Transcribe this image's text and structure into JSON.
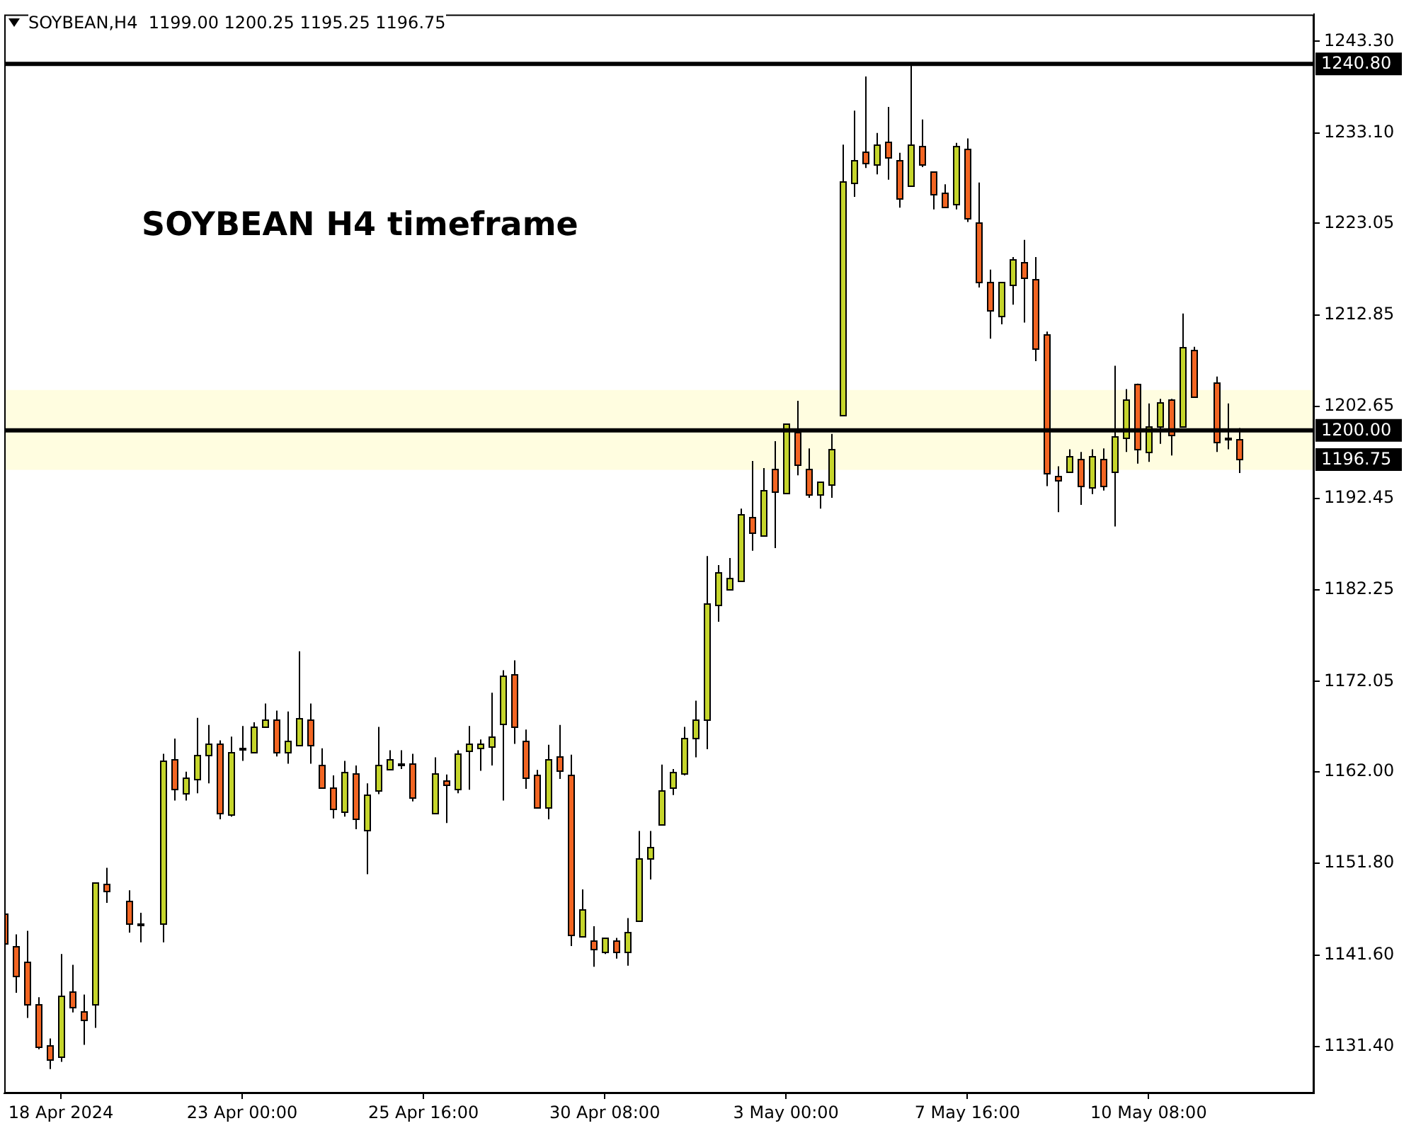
{
  "chart_data": {
    "type": "candlestick",
    "title": "SOYBEAN H4 timeframe",
    "subtitle": "SOYBEAN,H4  1199.00 1200.25 1195.25 1196.75",
    "categories": [
      null,
      null,
      null,
      null,
      null,
      "18 Apr 2024",
      null,
      null,
      null,
      null,
      null,
      null,
      null,
      null,
      null,
      null,
      null,
      null,
      null,
      null,
      null,
      "23 Apr 00:00",
      null,
      null,
      null,
      null,
      null,
      null,
      null,
      null,
      null,
      null,
      null,
      null,
      null,
      null,
      null,
      "25 Apr 16:00",
      null,
      null,
      null,
      null,
      null,
      null,
      null,
      null,
      null,
      null,
      null,
      null,
      null,
      null,
      null,
      "30 Apr 08:00",
      null,
      null,
      null,
      null,
      null,
      null,
      null,
      null,
      null,
      null,
      null,
      null,
      null,
      null,
      null,
      "3 May 00:00",
      null,
      null,
      null,
      null,
      null,
      null,
      null,
      null,
      null,
      null,
      null,
      null,
      null,
      null,
      null,
      "7 May 16:00",
      null,
      null,
      null,
      null,
      null,
      null,
      null,
      null,
      null,
      null,
      null,
      null,
      null,
      null,
      null,
      "10 May 08:00",
      null,
      null,
      null,
      null,
      null,
      null,
      null,
      null
    ],
    "ohlc": [
      [
        1146.2,
        1147.2,
        1142.5,
        1142.9
      ],
      [
        1142.6,
        1143.9,
        1137.4,
        1139.3
      ],
      [
        1140.9,
        1144.3,
        1134.6,
        1136.2
      ],
      [
        1136.2,
        1136.9,
        1131.1,
        1131.4
      ],
      [
        1131.5,
        1132.3,
        1128.9,
        1129.9
      ],
      [
        1130.3,
        1141.7,
        1129.7,
        1137.1
      ],
      [
        1137.5,
        1140.5,
        1135.2,
        1135.7
      ],
      [
        1135.4,
        1137.2,
        1131.6,
        1134.5
      ],
      [
        1136.2,
        1149.7,
        1133.5,
        1149.7
      ],
      [
        1149.5,
        1151.3,
        1147.4,
        1148.7
      ],
      null,
      [
        1147.6,
        1148.8,
        1144.1,
        1145.1
      ],
      [
        1145.1,
        1146.3,
        1143.0,
        1145.1
      ],
      null,
      [
        1145.1,
        1164.0,
        1143.0,
        1163.2
      ],
      [
        1163.4,
        1165.7,
        1158.8,
        1160.1
      ],
      [
        1159.7,
        1162.0,
        1158.8,
        1161.4
      ],
      [
        1161.2,
        1168.0,
        1159.6,
        1163.9
      ],
      [
        1163.9,
        1167.2,
        1160.7,
        1165.2
      ],
      [
        1165.2,
        1165.5,
        1156.7,
        1157.5
      ],
      [
        1157.2,
        1165.9,
        1157.0,
        1164.2
      ],
      [
        1164.6,
        1167.1,
        1163.2,
        1164.6
      ],
      [
        1164.2,
        1167.5,
        1164.2,
        1167.0
      ],
      [
        1167.0,
        1169.6,
        1167.0,
        1167.8
      ],
      [
        1167.8,
        1168.8,
        1163.7,
        1164.1
      ],
      [
        1164.2,
        1168.7,
        1162.9,
        1165.5
      ],
      [
        1165.0,
        1175.4,
        1165.0,
        1168.0
      ],
      [
        1167.8,
        1169.6,
        1162.9,
        1165.0
      ],
      [
        1162.8,
        1164.6,
        1160.2,
        1160.3
      ],
      [
        1160.2,
        1161.6,
        1156.8,
        1157.9
      ],
      [
        1157.6,
        1163.2,
        1157.0,
        1162.0
      ],
      [
        1161.9,
        1162.7,
        1155.6,
        1156.9
      ],
      [
        1155.6,
        1160.7,
        1150.6,
        1159.5
      ],
      [
        1159.8,
        1167.0,
        1159.5,
        1162.7
      ],
      [
        1162.3,
        1164.4,
        1162.2,
        1163.4
      ],
      [
        1163.0,
        1164.4,
        1162.3,
        1163.0
      ],
      [
        1163.0,
        1164.0,
        1158.7,
        1159.2
      ],
      null,
      [
        1157.5,
        1163.6,
        1157.5,
        1161.9
      ],
      [
        1161.1,
        1161.7,
        1156.3,
        1160.6
      ],
      [
        1160.2,
        1164.4,
        1159.6,
        1164.1
      ],
      [
        1164.4,
        1167.1,
        1160.0,
        1165.2
      ],
      [
        1164.8,
        1165.6,
        1162.1,
        1165.2
      ],
      [
        1164.8,
        1170.8,
        1162.7,
        1165.9
      ],
      [
        1167.3,
        1173.3,
        1158.8,
        1172.7
      ],
      [
        1172.8,
        1174.4,
        1165.1,
        1167.0
      ],
      [
        1165.5,
        1166.7,
        1160.1,
        1161.4
      ],
      [
        1161.7,
        1162.2,
        1157.9,
        1158.1
      ],
      [
        1158.1,
        1165.0,
        1156.7,
        1163.4
      ],
      [
        1163.7,
        1167.2,
        1161.2,
        1162.2
      ],
      [
        1161.7,
        1163.9,
        1142.6,
        1143.9
      ],
      [
        1143.7,
        1148.9,
        1143.7,
        1146.7
      ],
      [
        1143.2,
        1144.8,
        1140.3,
        1142.3
      ],
      [
        1142.0,
        1143.5,
        1141.7,
        1143.5
      ],
      [
        1143.2,
        1143.5,
        1141.2,
        1142.0
      ],
      [
        1142.0,
        1145.7,
        1140.4,
        1144.2
      ],
      [
        1145.4,
        1155.4,
        1145.3,
        1152.3
      ],
      [
        1152.5,
        1155.4,
        1150.0,
        1153.7
      ],
      [
        1156.2,
        1162.8,
        1156.1,
        1160.0
      ],
      [
        1160.3,
        1162.3,
        1159.4,
        1162.0
      ],
      [
        1161.9,
        1167.0,
        1161.6,
        1165.8
      ],
      [
        1165.8,
        1169.9,
        1163.6,
        1167.8
      ],
      [
        1167.8,
        1186.0,
        1164.5,
        1180.8
      ],
      [
        1180.5,
        1185.0,
        1178.7,
        1184.2
      ],
      [
        1182.4,
        1185.8,
        1182.4,
        1183.6
      ],
      [
        1183.3,
        1191.3,
        1183.3,
        1190.7
      ],
      [
        1190.4,
        1196.6,
        1186.6,
        1188.6
      ],
      [
        1188.3,
        1195.8,
        1188.3,
        1193.3
      ],
      [
        1195.8,
        1198.8,
        1186.9,
        1193.2
      ],
      [
        1192.9,
        1200.7,
        1192.9,
        1200.7
      ],
      [
        1199.9,
        1203.3,
        1195.0,
        1196.3
      ],
      [
        1195.8,
        1198.0,
        1192.5,
        1192.9
      ],
      [
        1192.9,
        1194.3,
        1191.3,
        1194.3
      ],
      [
        1194.1,
        1199.6,
        1192.5,
        1198.0
      ],
      [
        1201.8,
        1231.8,
        1201.8,
        1227.8
      ],
      [
        1227.6,
        1235.6,
        1226.0,
        1230.1
      ],
      [
        1231.0,
        1239.4,
        1229.2,
        1229.8
      ],
      [
        1229.6,
        1233.1,
        1228.5,
        1231.8
      ],
      [
        1232.1,
        1236.0,
        1227.9,
        1230.4
      ],
      [
        1230.1,
        1230.9,
        1224.8,
        1225.9
      ],
      [
        1227.3,
        1240.8,
        1227.3,
        1231.8
      ],
      [
        1231.7,
        1234.6,
        1229.3,
        1229.6
      ],
      [
        1228.8,
        1228.8,
        1224.6,
        1226.2
      ],
      [
        1226.5,
        1227.4,
        1224.9,
        1224.9
      ],
      [
        1225.2,
        1232.0,
        1224.6,
        1231.7
      ],
      [
        1231.4,
        1232.5,
        1223.2,
        1223.7
      ],
      [
        1223.2,
        1227.6,
        1215.9,
        1216.6
      ],
      [
        1216.5,
        1217.9,
        1210.2,
        1213.4
      ],
      [
        1212.7,
        1216.5,
        1211.8,
        1216.5
      ],
      [
        1216.2,
        1219.3,
        1214.0,
        1219.0
      ],
      [
        1218.7,
        1221.2,
        1212.0,
        1217.0
      ],
      [
        1216.8,
        1219.3,
        1207.7,
        1209.0
      ],
      [
        1210.7,
        1211.0,
        1193.8,
        1195.2
      ],
      [
        1195.0,
        1196.0,
        1190.9,
        1194.6
      ],
      [
        1195.4,
        1197.9,
        1195.4,
        1197.1
      ],
      [
        1196.8,
        1197.6,
        1191.7,
        1193.8
      ],
      [
        1193.6,
        1197.9,
        1192.9,
        1197.1
      ],
      [
        1196.8,
        1198.0,
        1193.3,
        1193.8
      ],
      [
        1195.4,
        1207.2,
        1189.3,
        1199.3
      ],
      [
        1199.3,
        1204.6,
        1197.6,
        1203.5
      ],
      [
        1205.2,
        1205.2,
        1196.3,
        1198.0
      ],
      [
        1197.6,
        1203.0,
        1196.5,
        1200.5
      ],
      [
        1200.5,
        1203.5,
        1198.5,
        1203.2
      ],
      [
        1203.5,
        1203.5,
        1197.2,
        1199.6
      ],
      [
        1200.4,
        1213.0,
        1200.4,
        1209.3
      ],
      [
        1209.0,
        1209.3,
        1203.8,
        1203.8
      ],
      null,
      [
        1205.4,
        1206.0,
        1197.6,
        1198.8
      ],
      [
        1199.2,
        1203.0,
        1197.9,
        1199.2
      ],
      [
        1199.0,
        1200.25,
        1195.25,
        1196.75
      ]
    ],
    "colors": [
      "#f26522",
      "#f26522",
      "#f26522",
      "#f26522",
      "#f26522",
      "#c5d52b",
      "#f26522",
      "#f26522",
      "#c5d52b",
      "#f26522",
      null,
      "#f26522",
      "#c5d52b",
      null,
      "#c5d52b",
      "#f26522",
      "#c5d52b",
      "#c5d52b",
      "#c5d52b",
      "#f26522",
      "#c5d52b",
      "#c5d52b",
      "#c5d52b",
      "#c5d52b",
      "#f26522",
      "#c5d52b",
      "#c5d52b",
      "#f26522",
      "#f26522",
      "#f26522",
      "#c5d52b",
      "#f26522",
      "#c5d52b",
      "#c5d52b",
      "#c5d52b",
      "#c5d52b",
      "#f26522",
      null,
      "#c5d52b",
      "#f26522",
      "#c5d52b",
      "#c5d52b",
      "#c5d52b",
      "#c5d52b",
      "#c5d52b",
      "#f26522",
      "#f26522",
      "#f26522",
      "#c5d52b",
      "#f26522",
      "#f26522",
      "#c5d52b",
      "#f26522",
      "#c5d52b",
      "#f26522",
      "#c5d52b",
      "#c5d52b",
      "#c5d52b",
      "#c5d52b",
      "#c5d52b",
      "#c5d52b",
      "#c5d52b",
      "#c5d52b",
      "#c5d52b",
      "#c5d52b",
      "#c5d52b",
      "#f26522",
      "#c5d52b",
      "#f26522",
      "#c5d52b",
      "#f26522",
      "#f26522",
      "#c5d52b",
      "#c5d52b",
      "#c5d52b",
      "#c5d52b",
      "#f26522",
      "#c5d52b",
      "#f26522",
      "#f26522",
      "#c5d52b",
      "#f26522",
      "#f26522",
      "#f26522",
      "#c5d52b",
      "#f26522",
      "#f26522",
      "#f26522",
      "#c5d52b",
      "#c5d52b",
      "#f26522",
      "#f26522",
      "#f26522",
      "#f26522",
      "#c5d52b",
      "#f26522",
      "#c5d52b",
      "#f26522",
      "#c5d52b",
      "#c5d52b",
      "#f26522",
      "#c5d52b",
      "#c5d52b",
      "#f26522",
      "#c5d52b",
      "#f26522",
      null,
      "#f26522",
      "#c5d52b",
      "#f26522"
    ],
    "ylim": [
      1126.2,
      1246.3
    ],
    "yticks": [
      {
        "value": 1131.4,
        "label": "1131.40"
      },
      {
        "value": 1141.6,
        "label": "1141.60"
      },
      {
        "value": 1151.8,
        "label": "1151.80"
      },
      {
        "value": 1162,
        "label": "1162.00"
      },
      {
        "value": 1172.05,
        "label": "1172.05"
      },
      {
        "value": 1182.25,
        "label": "1182.25"
      },
      {
        "value": 1192.45,
        "label": "1192.45"
      },
      {
        "value": 1202.65,
        "label": "1202.65"
      },
      {
        "value": 1212.85,
        "label": "1212.85"
      },
      {
        "value": 1223.05,
        "label": "1223.05"
      },
      {
        "value": 1233.1,
        "label": "1233.10"
      },
      {
        "value": 1243.3,
        "label": "1243.30"
      }
    ],
    "ref_lines": [
      {
        "axis": "y",
        "value": 1240.8,
        "label": "1240.80",
        "color": "#000000"
      },
      {
        "axis": "y",
        "value": 1200,
        "label": "1200.00",
        "color": "#000000"
      }
    ],
    "bands": [
      {
        "axis": "y",
        "from": 1195.6,
        "to": 1204.5,
        "color": "#fffde0"
      }
    ],
    "annotations": [
      "1196.75"
    ]
  }
}
